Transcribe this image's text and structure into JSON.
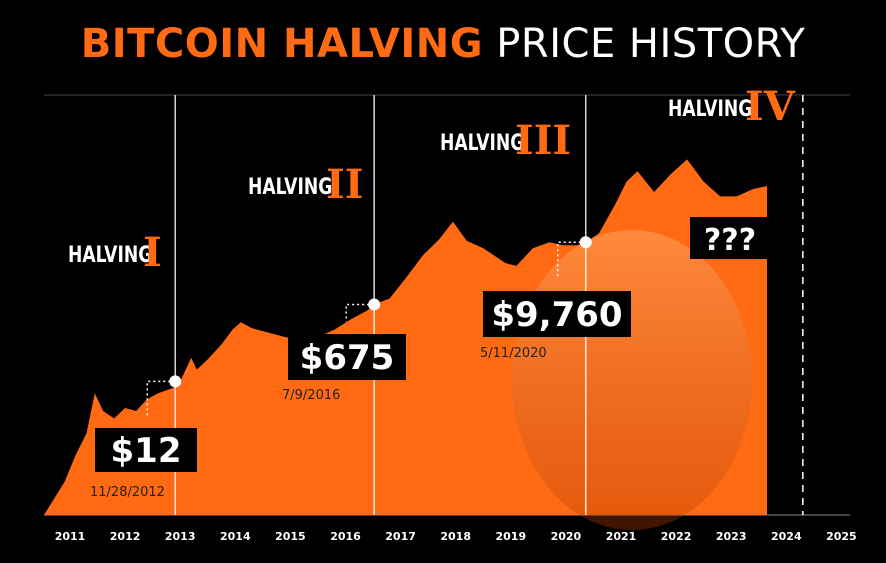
{
  "title": {
    "part1": "BITCOIN HALVING",
    "part2": "PRICE HISTORY"
  },
  "colors": {
    "accent": "#ff6a13",
    "background": "#000000",
    "text": "#ffffff"
  },
  "chart_data": {
    "type": "area",
    "title": "BITCOIN HALVING PRICE HISTORY",
    "x_ticks": [
      "2011",
      "2012",
      "2013",
      "2014",
      "2015",
      "2016",
      "2017",
      "2018",
      "2019",
      "2020",
      "2021",
      "2022",
      "2023",
      "2024",
      "2025"
    ],
    "grid": false,
    "series": [
      {
        "x": [
          2010.9,
          2011.1,
          2011.3,
          2011.45,
          2011.6,
          2011.8,
          2012.0,
          2012.2,
          2012.4,
          2012.6,
          2012.9,
          2013.0,
          2013.2,
          2013.3,
          2013.5,
          2013.75,
          2013.95,
          2014.1,
          2014.3,
          2014.6,
          2014.9,
          2015.2,
          2015.5,
          2015.8,
          2016.1,
          2016.4,
          2016.52,
          2016.8,
          2017.1,
          2017.4,
          2017.7,
          2017.95,
          2018.2,
          2018.5,
          2018.9,
          2019.1,
          2019.4,
          2019.7,
          2019.95,
          2020.2,
          2020.36,
          2020.6,
          2020.9,
          2021.1,
          2021.3,
          2021.6,
          2021.9,
          2022.2,
          2022.5,
          2022.8,
          2023.1,
          2023.4,
          2023.65
        ],
        "level": [
          0.02,
          0.2,
          0.35,
          0.62,
          0.5,
          0.45,
          0.52,
          0.5,
          0.58,
          0.62,
          0.66,
          0.7,
          0.86,
          0.78,
          0.85,
          0.95,
          1.05,
          1.1,
          1.06,
          1.03,
          1.0,
          0.98,
          1.0,
          1.05,
          1.12,
          1.18,
          1.22,
          1.26,
          1.4,
          1.55,
          1.66,
          1.78,
          1.65,
          1.6,
          1.5,
          1.48,
          1.6,
          1.64,
          1.62,
          1.62,
          1.64,
          1.7,
          1.9,
          2.05,
          2.12,
          1.98,
          2.1,
          2.2,
          2.05,
          1.95,
          1.95,
          2.0,
          2.02
        ]
      }
    ],
    "halvings": [
      {
        "numeral": "I",
        "label": "HALVING",
        "price": "$12",
        "date": "11/28/2012",
        "year": 2012.91
      },
      {
        "numeral": "II",
        "label": "HALVING",
        "price": "$675",
        "date": "7/9/2016",
        "year": 2016.52
      },
      {
        "numeral": "III",
        "label": "HALVING",
        "price": "$9,760",
        "date": "5/11/2020",
        "year": 2020.36
      },
      {
        "numeral": "IV",
        "label": "HALVING",
        "price": "???",
        "date": "",
        "year": 2024.3
      }
    ]
  }
}
